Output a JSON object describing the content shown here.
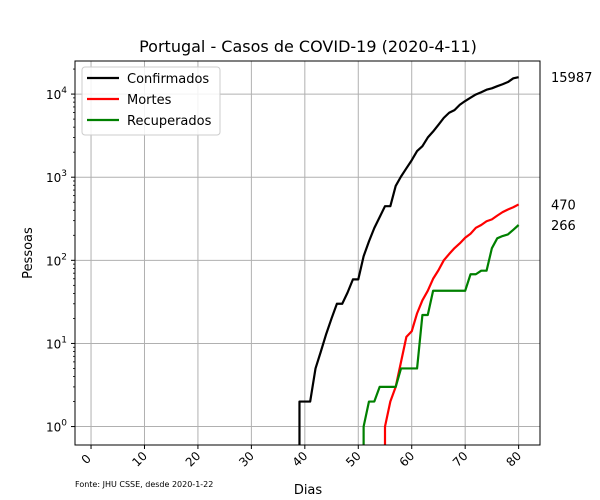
{
  "chart_data": {
    "type": "line",
    "title": "Portugal - Casos de COVID-19 (2020-4-11)",
    "xlabel": "Dias",
    "ylabel": "Pessoas",
    "source": "Fonte: JHU CSSE, desde 2020-1-22",
    "xlim": [
      -3,
      84
    ],
    "ylim": [
      0.6,
      25000
    ],
    "yscale": "log",
    "grid": true,
    "legend_position": "top-left",
    "xticks": [
      0,
      10,
      20,
      30,
      40,
      50,
      60,
      70,
      80
    ],
    "yticks": [
      {
        "value": 1,
        "base": "10",
        "exp": "0"
      },
      {
        "value": 10,
        "base": "10",
        "exp": "1"
      },
      {
        "value": 100,
        "base": "10",
        "exp": "2"
      },
      {
        "value": 1000,
        "base": "10",
        "exp": "3"
      },
      {
        "value": 10000,
        "base": "10",
        "exp": "4"
      }
    ],
    "series": [
      {
        "name": "Confirmados",
        "color": "#000000",
        "end_label": "15987",
        "x": [
          39,
          40,
          41,
          42,
          43,
          44,
          45,
          46,
          47,
          48,
          49,
          50,
          51,
          52,
          53,
          54,
          55,
          56,
          57,
          58,
          59,
          60,
          61,
          62,
          63,
          64,
          65,
          66,
          67,
          68,
          69,
          70,
          71,
          72,
          73,
          74,
          75,
          76,
          77,
          78,
          79,
          80
        ],
        "y": [
          2,
          2,
          2,
          5,
          8,
          13,
          20,
          30,
          30,
          41,
          59,
          59,
          112,
          169,
          245,
          331,
          448,
          448,
          785,
          1020,
          1280,
          1600,
          2060,
          2362,
          3001,
          3544,
          4268,
          5170,
          5962,
          6408,
          7443,
          8251,
          9034,
          9886,
          10524,
          11278,
          11730,
          12442,
          13141,
          13956,
          15472,
          15987
        ]
      },
      {
        "name": "Mortes",
        "color": "#ff0000",
        "end_label": "470",
        "x": [
          55,
          56,
          57,
          58,
          59,
          60,
          61,
          62,
          63,
          64,
          65,
          66,
          67,
          68,
          69,
          70,
          71,
          72,
          73,
          74,
          75,
          76,
          77,
          78,
          79,
          80
        ],
        "y": [
          1,
          2,
          3,
          6,
          12,
          14,
          23,
          33,
          43,
          60,
          76,
          100,
          119,
          140,
          160,
          187,
          209,
          246,
          266,
          295,
          311,
          345,
          380,
          409,
          435,
          470
        ]
      },
      {
        "name": "Recuperados",
        "color": "#008000",
        "end_label": "266",
        "x": [
          51,
          52,
          53,
          54,
          55,
          56,
          57,
          58,
          59,
          60,
          61,
          62,
          63,
          64,
          65,
          66,
          67,
          68,
          69,
          70,
          71,
          72,
          73,
          74,
          75,
          76,
          77,
          78,
          79,
          80
        ],
        "y": [
          1,
          2,
          2,
          3,
          3,
          3,
          3,
          5,
          5,
          5,
          5,
          22,
          22,
          43,
          43,
          43,
          43,
          43,
          43,
          43,
          68,
          68,
          75,
          75,
          140,
          184,
          196,
          205,
          233,
          266
        ]
      }
    ]
  }
}
